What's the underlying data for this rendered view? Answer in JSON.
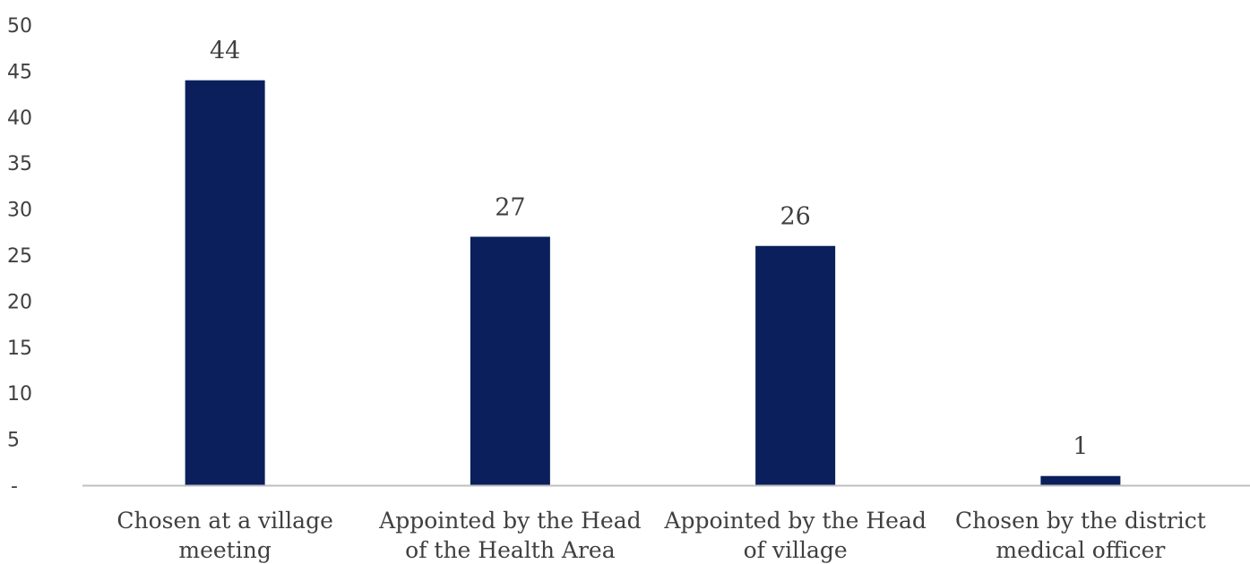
{
  "chart_data": {
    "type": "bar",
    "categories": [
      [
        "Chosen at a village",
        "meeting"
      ],
      [
        "Appointed by the Head",
        "of the Health Area"
      ],
      [
        "Appointed by the Head",
        "of village"
      ],
      [
        "Chosen by the district",
        "medical officer"
      ]
    ],
    "values": [
      44,
      27,
      26,
      1
    ],
    "data_labels": [
      "44",
      "27",
      "26",
      "1"
    ],
    "y_ticks": [
      0,
      5,
      10,
      15,
      20,
      25,
      30,
      35,
      40,
      45,
      50
    ],
    "y_tick_labels": [
      "-",
      "5",
      "10",
      "15",
      "20",
      "25",
      "30",
      "35",
      "40",
      "45",
      "50"
    ],
    "ylim": [
      0,
      50
    ],
    "grid": false,
    "legend": "none",
    "bar_color": "#0a1f5c",
    "axis_color": "#bfbfbf",
    "text_color": "#404040"
  }
}
